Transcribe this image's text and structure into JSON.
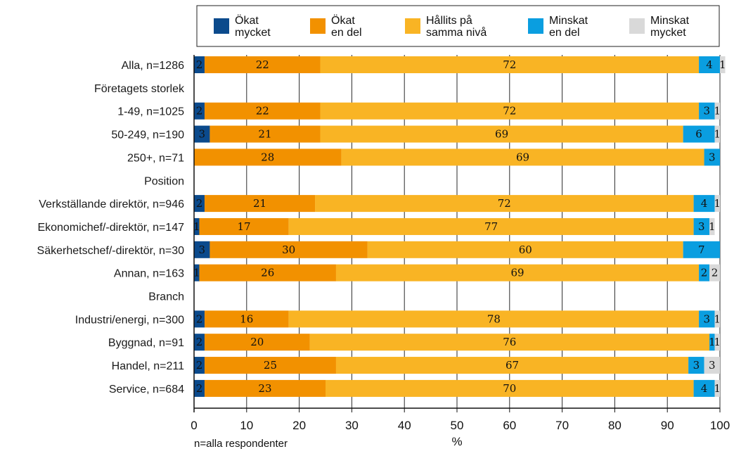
{
  "chart_data": {
    "type": "bar",
    "orientation": "horizontal",
    "stacked": true,
    "xlabel": "%",
    "xlim": [
      0,
      100
    ],
    "xticks": [
      0,
      10,
      20,
      30,
      40,
      50,
      60,
      70,
      80,
      90,
      100
    ],
    "grid": true,
    "legend_position": "top",
    "footnote": "n=alla respondenter",
    "series": [
      {
        "name": "Ökat mycket",
        "label_lines": [
          "Ökat",
          "mycket"
        ],
        "color": "#0b4a8c"
      },
      {
        "name": "Ökat en del",
        "label_lines": [
          "Ökat",
          "en del"
        ],
        "color": "#f29100"
      },
      {
        "name": "Hållits på samma nivå",
        "label_lines": [
          "Hållits på",
          "samma nivå"
        ],
        "color": "#f9b424"
      },
      {
        "name": "Minskat en del",
        "label_lines": [
          "Minskat",
          "en del"
        ],
        "color": "#0a9ee0"
      },
      {
        "name": "Minskat mycket",
        "label_lines": [
          "Minskat",
          "mycket"
        ],
        "color": "#d9d9d9"
      }
    ],
    "rows": [
      {
        "label": "Alla, n=1286",
        "values": [
          2,
          22,
          72,
          4,
          1
        ]
      },
      {
        "label": "Företagets storlek",
        "header": true
      },
      {
        "label": "1-49, n=1025",
        "values": [
          2,
          22,
          72,
          3,
          1
        ]
      },
      {
        "label": "50-249, n=190",
        "values": [
          3,
          21,
          69,
          6,
          1
        ]
      },
      {
        "label": "250+, n=71",
        "values": [
          0,
          28,
          69,
          3,
          0
        ]
      },
      {
        "label": "Position",
        "header": true
      },
      {
        "label": "Verkställande direktör, n=946",
        "values": [
          2,
          21,
          72,
          4,
          1
        ]
      },
      {
        "label": "Ekonomichef/-direktör, n=147",
        "values": [
          1,
          17,
          77,
          3,
          1
        ]
      },
      {
        "label": "Säkerhetschef/-direktör, n=30",
        "values": [
          3,
          30,
          60,
          7,
          0
        ]
      },
      {
        "label": "Annan, n=163",
        "values": [
          1,
          26,
          69,
          2,
          2
        ]
      },
      {
        "label": "Branch",
        "header": true
      },
      {
        "label": "Industri/energi, n=300",
        "values": [
          2,
          16,
          78,
          3,
          1
        ]
      },
      {
        "label": "Byggnad, n=91",
        "values": [
          2,
          20,
          76,
          1,
          1
        ]
      },
      {
        "label": "Handel, n=211",
        "values": [
          2,
          25,
          67,
          3,
          3
        ]
      },
      {
        "label": "Service, n=684",
        "values": [
          2,
          23,
          70,
          4,
          1
        ]
      }
    ]
  }
}
